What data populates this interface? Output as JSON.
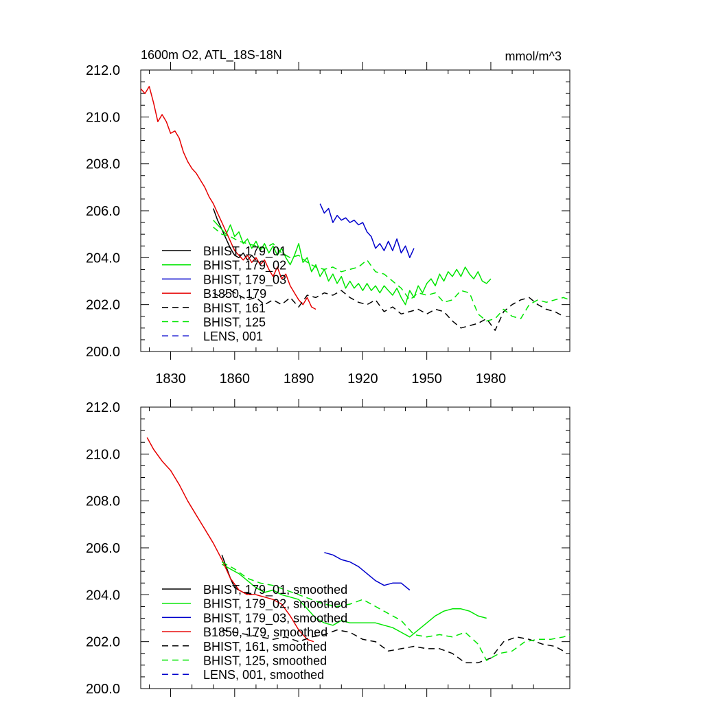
{
  "colors": {
    "black": "#000000",
    "green": "#00e600",
    "blue": "#0000cc",
    "red": "#e60000"
  },
  "chart_data": [
    {
      "type": "line",
      "title": "1600m O2, ATL_18S-18N",
      "units": "mmol/m^3",
      "xlabel": "",
      "ylabel": "",
      "xlim": [
        1816,
        2017
      ],
      "ylim": [
        200,
        212
      ],
      "xticks": [
        1830,
        1860,
        1890,
        1920,
        1950,
        1980
      ],
      "xtick_labels": [
        "1830",
        "1860",
        "1890",
        "1920",
        "1950",
        "1980"
      ],
      "yticks": [
        200,
        202,
        204,
        206,
        208,
        210,
        212
      ],
      "ytick_labels": [
        "200.0",
        "202.0",
        "204.0",
        "206.0",
        "208.0",
        "210.0",
        "212.0"
      ],
      "legend_position": "lower-left",
      "series": [
        {
          "name": "BHIST, 179_01",
          "color": "black",
          "dash": false,
          "x": [
            1850,
            1852,
            1854,
            1856,
            1858,
            1860,
            1862,
            1864,
            1866,
            1868,
            1870
          ],
          "y": [
            206.1,
            205.6,
            205.2,
            204.8,
            204.4,
            204.1,
            204.0,
            204.2,
            203.9,
            204.1,
            203.9
          ]
        },
        {
          "name": "BHIST, 179_02",
          "color": "green",
          "dash": false,
          "x": [
            1850,
            1852,
            1854,
            1856,
            1858,
            1860,
            1862,
            1864,
            1866,
            1868,
            1870,
            1872,
            1874,
            1876,
            1878,
            1880,
            1882,
            1884,
            1886,
            1888,
            1890,
            1892,
            1894,
            1896,
            1898,
            1900,
            1902,
            1904,
            1906,
            1908,
            1910,
            1912,
            1914,
            1916,
            1918,
            1920,
            1922,
            1924,
            1926,
            1928,
            1930,
            1932,
            1934,
            1936,
            1938,
            1940,
            1942,
            1944,
            1946,
            1948,
            1950,
            1952,
            1954,
            1956,
            1958,
            1960,
            1962,
            1964,
            1966,
            1968,
            1970,
            1972,
            1974,
            1976,
            1978,
            1980
          ],
          "y": [
            205.6,
            205.4,
            205.2,
            205.0,
            205.4,
            204.9,
            205.1,
            204.6,
            204.8,
            204.4,
            204.7,
            204.3,
            204.6,
            204.2,
            204.5,
            204.1,
            204.4,
            204.0,
            203.7,
            204.1,
            204.6,
            203.8,
            204.0,
            203.4,
            203.7,
            203.2,
            203.5,
            203.0,
            203.3,
            202.9,
            203.2,
            202.7,
            203.0,
            202.7,
            202.9,
            202.6,
            202.9,
            202.6,
            202.8,
            202.5,
            202.8,
            202.6,
            202.4,
            202.7,
            202.3,
            202.0,
            202.6,
            202.3,
            202.8,
            202.5,
            202.9,
            203.1,
            202.8,
            203.3,
            203.0,
            203.4,
            203.2,
            203.5,
            203.2,
            203.6,
            203.3,
            203.1,
            203.4,
            203.0,
            202.9,
            203.1
          ]
        },
        {
          "name": "BHIST, 179_03",
          "color": "blue",
          "dash": false,
          "x": [
            1900,
            1902,
            1904,
            1906,
            1908,
            1910,
            1912,
            1914,
            1916,
            1918,
            1920,
            1922,
            1924,
            1926,
            1928,
            1930,
            1932,
            1934,
            1936,
            1938,
            1940,
            1942,
            1944
          ],
          "y": [
            206.3,
            205.9,
            206.1,
            205.5,
            205.8,
            205.6,
            205.7,
            205.5,
            205.6,
            205.4,
            205.5,
            205.1,
            204.9,
            204.4,
            204.6,
            204.3,
            204.7,
            204.3,
            204.8,
            204.2,
            204.5,
            204.0,
            204.4
          ]
        },
        {
          "name": "B1850, 179",
          "color": "red",
          "dash": false,
          "x": [
            1816,
            1818,
            1820,
            1822,
            1824,
            1826,
            1828,
            1830,
            1832,
            1834,
            1836,
            1838,
            1840,
            1842,
            1844,
            1846,
            1848,
            1850,
            1852,
            1854,
            1856,
            1858,
            1860,
            1862,
            1864,
            1866,
            1868,
            1870,
            1872,
            1874,
            1876,
            1878,
            1880,
            1882,
            1884,
            1886,
            1888,
            1890,
            1892,
            1894,
            1896,
            1898
          ],
          "y": [
            211.2,
            211.0,
            211.3,
            210.6,
            209.8,
            210.1,
            209.8,
            209.3,
            209.4,
            209.1,
            208.5,
            208.1,
            207.8,
            207.6,
            207.3,
            207.0,
            206.6,
            206.3,
            205.9,
            205.5,
            205.1,
            204.7,
            204.3,
            204.1,
            203.9,
            204.1,
            203.8,
            204.0,
            203.7,
            203.9,
            203.5,
            203.2,
            203.6,
            203.1,
            203.3,
            202.8,
            202.5,
            202.2,
            202.0,
            202.3,
            201.9,
            201.8
          ]
        },
        {
          "name": "BHIST, 161",
          "color": "black",
          "dash": true,
          "x": [
            1850,
            1854,
            1858,
            1862,
            1866,
            1870,
            1874,
            1878,
            1882,
            1886,
            1890,
            1894,
            1898,
            1902,
            1906,
            1910,
            1914,
            1918,
            1922,
            1926,
            1930,
            1934,
            1938,
            1942,
            1946,
            1950,
            1954,
            1958,
            1962,
            1966,
            1970,
            1974,
            1978,
            1982,
            1986,
            1990,
            1994,
            1998,
            2002,
            2006,
            2010,
            2014
          ],
          "y": [
            202.5,
            202.3,
            202.6,
            202.4,
            202.2,
            202.3,
            202.0,
            202.2,
            202.0,
            202.3,
            201.9,
            202.4,
            202.3,
            202.5,
            202.4,
            202.6,
            202.3,
            202.1,
            202.0,
            202.2,
            201.7,
            201.9,
            201.6,
            201.7,
            201.8,
            201.6,
            201.8,
            201.7,
            201.3,
            201.0,
            201.1,
            201.2,
            201.4,
            200.9,
            201.7,
            202.0,
            202.2,
            202.3,
            202.0,
            201.8,
            201.7,
            201.5
          ]
        },
        {
          "name": "BHIST, 125",
          "color": "green",
          "dash": true,
          "x": [
            1850,
            1854,
            1858,
            1862,
            1866,
            1870,
            1874,
            1878,
            1882,
            1886,
            1890,
            1894,
            1898,
            1902,
            1906,
            1910,
            1914,
            1918,
            1922,
            1926,
            1930,
            1934,
            1938,
            1942,
            1946,
            1950,
            1954,
            1958,
            1962,
            1966,
            1970,
            1974,
            1978,
            1982,
            1986,
            1990,
            1994,
            1998,
            2002,
            2006,
            2010,
            2014,
            2017
          ],
          "y": [
            205.3,
            205.0,
            204.9,
            204.7,
            204.6,
            204.5,
            204.4,
            204.6,
            204.2,
            204.0,
            204.1,
            203.8,
            203.6,
            203.5,
            203.6,
            203.4,
            203.5,
            203.6,
            203.9,
            203.4,
            203.3,
            203.0,
            202.7,
            202.2,
            202.5,
            202.4,
            202.5,
            202.1,
            202.2,
            202.6,
            202.5,
            201.6,
            201.3,
            201.4,
            201.8,
            201.5,
            201.4,
            202.0,
            202.2,
            202.1,
            202.2,
            202.3,
            202.2
          ]
        },
        {
          "name": "LENS, 001",
          "color": "blue",
          "dash": true,
          "x": [],
          "y": []
        }
      ]
    },
    {
      "type": "line",
      "title": "",
      "units": "",
      "xlabel": "",
      "ylabel": "",
      "xlim": [
        1816,
        2017
      ],
      "ylim": [
        200,
        212
      ],
      "xticks": [
        1830,
        1860,
        1890,
        1920,
        1950,
        1980
      ],
      "xtick_labels": [],
      "yticks": [
        200,
        202,
        204,
        206,
        208,
        210,
        212
      ],
      "ytick_labels": [
        "200.0",
        "202.0",
        "204.0",
        "206.0",
        "208.0",
        "210.0",
        "212.0"
      ],
      "legend_position": "lower-left",
      "series": [
        {
          "name": "BHIST, 179_01, smoothed",
          "color": "black",
          "dash": false,
          "x": [
            1854,
            1856,
            1858,
            1860,
            1862,
            1864,
            1866,
            1868
          ],
          "y": [
            205.7,
            205.2,
            204.7,
            204.3,
            204.2,
            204.1,
            204.1,
            204.0
          ]
        },
        {
          "name": "BHIST, 179_02, smoothed",
          "color": "green",
          "dash": false,
          "x": [
            1854,
            1858,
            1862,
            1866,
            1870,
            1874,
            1878,
            1882,
            1886,
            1890,
            1894,
            1898,
            1902,
            1906,
            1910,
            1914,
            1918,
            1922,
            1926,
            1930,
            1934,
            1938,
            1942,
            1946,
            1950,
            1954,
            1958,
            1962,
            1966,
            1970,
            1974,
            1978
          ],
          "y": [
            205.3,
            205.1,
            204.9,
            204.6,
            204.3,
            204.1,
            204.2,
            204.0,
            203.9,
            203.8,
            203.4,
            203.0,
            202.8,
            202.7,
            202.9,
            202.8,
            202.8,
            202.8,
            202.8,
            202.7,
            202.6,
            202.4,
            202.2,
            202.5,
            202.8,
            203.1,
            203.3,
            203.4,
            203.4,
            203.3,
            203.1,
            203.0
          ]
        },
        {
          "name": "BHIST, 179_03, smoothed",
          "color": "blue",
          "dash": false,
          "x": [
            1902,
            1906,
            1910,
            1914,
            1918,
            1922,
            1926,
            1930,
            1934,
            1938,
            1942
          ],
          "y": [
            205.8,
            205.7,
            205.5,
            205.4,
            205.2,
            204.9,
            204.6,
            204.4,
            204.5,
            204.5,
            204.2
          ]
        },
        {
          "name": "B1850, 179, smoothed",
          "color": "red",
          "dash": false,
          "x": [
            1819,
            1822,
            1826,
            1830,
            1834,
            1838,
            1842,
            1846,
            1850,
            1854,
            1858,
            1862,
            1866,
            1870,
            1874,
            1878,
            1882,
            1886,
            1890,
            1894,
            1897
          ],
          "y": [
            210.7,
            210.2,
            209.7,
            209.3,
            208.7,
            208.0,
            207.4,
            206.8,
            206.2,
            205.5,
            204.7,
            204.2,
            204.0,
            204.0,
            203.9,
            203.8,
            203.6,
            203.1,
            202.5,
            202.1,
            202.0
          ]
        },
        {
          "name": "BHIST, 161, smoothed",
          "color": "black",
          "dash": true,
          "x": [
            1854,
            1860,
            1866,
            1872,
            1878,
            1884,
            1890,
            1896,
            1902,
            1908,
            1914,
            1920,
            1926,
            1932,
            1938,
            1944,
            1950,
            1956,
            1962,
            1968,
            1974,
            1980,
            1986,
            1992,
            1998,
            2004,
            2010,
            2014
          ],
          "y": [
            202.5,
            202.4,
            202.3,
            202.2,
            202.1,
            202.2,
            202.0,
            202.2,
            202.3,
            202.5,
            202.4,
            202.1,
            202.0,
            201.6,
            201.7,
            201.8,
            201.7,
            201.7,
            201.5,
            201.1,
            201.1,
            201.3,
            202.0,
            202.2,
            202.1,
            201.9,
            201.8,
            201.6
          ]
        },
        {
          "name": "BHIST, 125, smoothed",
          "color": "green",
          "dash": true,
          "x": [
            1854,
            1860,
            1866,
            1872,
            1878,
            1884,
            1890,
            1896,
            1902,
            1908,
            1914,
            1920,
            1926,
            1932,
            1938,
            1944,
            1950,
            1956,
            1962,
            1968,
            1974,
            1978,
            1984,
            1990,
            1996,
            2002,
            2008,
            2014,
            2017
          ],
          "y": [
            205.4,
            205.1,
            204.7,
            204.5,
            204.4,
            204.2,
            204.0,
            203.8,
            203.6,
            203.5,
            203.6,
            203.8,
            203.5,
            203.2,
            202.9,
            202.3,
            202.2,
            202.3,
            202.2,
            202.4,
            201.9,
            201.2,
            201.5,
            201.6,
            202.0,
            202.1,
            202.1,
            202.2,
            202.3
          ]
        },
        {
          "name": "LENS, 001, smoothed",
          "color": "blue",
          "dash": true,
          "x": [],
          "y": []
        }
      ]
    }
  ]
}
